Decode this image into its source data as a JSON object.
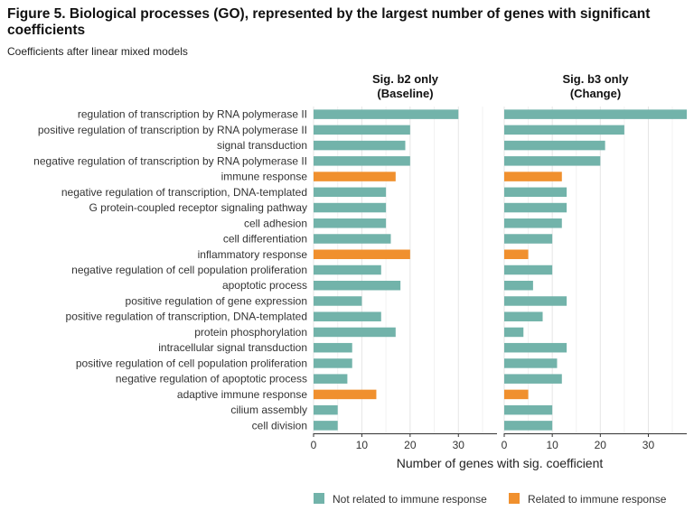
{
  "chart_data": {
    "type": "bar",
    "orientation": "horizontal",
    "title": "Figure 5. Biological processes (GO), represented by the largest number of genes with significant coefficients",
    "subtitle": "Coefficients after linear mixed models",
    "xlabel": "Number of genes with sig. coefficient",
    "xlim": [
      0,
      38
    ],
    "xticks": [
      0,
      10,
      20,
      30
    ],
    "grid": true,
    "legend_position": "bottom-right",
    "colors": {
      "not_immune": "#72b3aa",
      "immune": "#f0902e"
    },
    "legend": [
      {
        "key": "not_immune",
        "label": "Not related to immune response"
      },
      {
        "key": "immune",
        "label": "Related to immune response"
      }
    ],
    "categories": [
      "regulation of transcription by RNA polymerase II",
      "positive regulation of transcription by RNA polymerase II",
      "signal transduction",
      "negative regulation of transcription by RNA polymerase II",
      "immune response",
      "negative regulation of transcription, DNA-templated",
      "G protein-coupled receptor signaling pathway",
      "cell adhesion",
      "cell differentiation",
      "inflammatory response",
      "negative regulation of cell population proliferation",
      "apoptotic process",
      "positive regulation of gene expression",
      "positive regulation of transcription, DNA-templated",
      "protein phosphorylation",
      "intracellular signal transduction",
      "positive regulation of cell population proliferation",
      "negative regulation of apoptotic process",
      "adaptive immune response",
      "cilium assembly",
      "cell division"
    ],
    "immune_related": [
      false,
      false,
      false,
      false,
      true,
      false,
      false,
      false,
      false,
      true,
      false,
      false,
      false,
      false,
      false,
      false,
      false,
      false,
      true,
      false,
      false
    ],
    "series": [
      {
        "name": "Sig. b2 only\n(Baseline)",
        "title_lines": [
          "Sig. b2 only",
          "(Baseline)"
        ],
        "values": [
          30,
          20,
          19,
          20,
          17,
          15,
          15,
          15,
          16,
          20,
          14,
          18,
          10,
          14,
          17,
          8,
          8,
          7,
          13,
          5,
          5
        ]
      },
      {
        "name": "Sig. b3 only\n(Change)",
        "title_lines": [
          "Sig. b3 only",
          "(Change)"
        ],
        "values": [
          38,
          25,
          21,
          20,
          12,
          13,
          13,
          12,
          10,
          5,
          10,
          6,
          13,
          8,
          4,
          13,
          11,
          12,
          5,
          10,
          10
        ]
      }
    ]
  }
}
